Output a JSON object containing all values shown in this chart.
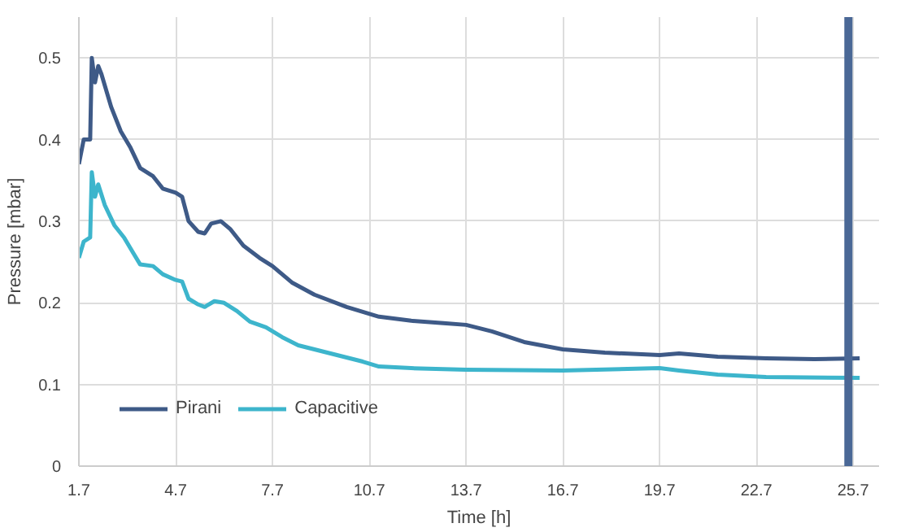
{
  "chart_data": {
    "type": "line",
    "xlabel": "Time [h]",
    "ylabel": "Pressure [mbar]",
    "xlim": [
      1.7,
      26.5
    ],
    "xticks": [
      1.7,
      4.7,
      7.7,
      10.7,
      13.7,
      16.7,
      19.7,
      22.7,
      25.7
    ],
    "ylim": [
      0,
      0.55
    ],
    "yticks": [
      0,
      0.1,
      0.2,
      0.3,
      0.4,
      0.5
    ],
    "grid": true,
    "legend": "bottom left",
    "line_style": "solid",
    "marker": "none",
    "ref_lines": [
      {
        "axis": "x",
        "value": 25.55,
        "label": null,
        "color": "#4a6896"
      }
    ],
    "series": [
      {
        "name": "Pirani",
        "color": "#3e5a87",
        "x": [
          1.7,
          1.85,
          2.05,
          2.1,
          2.2,
          2.3,
          2.4,
          2.7,
          3.0,
          3.3,
          3.6,
          4.0,
          4.3,
          4.7,
          4.9,
          5.1,
          5.4,
          5.6,
          5.8,
          6.1,
          6.4,
          6.8,
          7.3,
          7.7,
          8.3,
          9,
          10,
          11,
          12,
          13,
          13.7,
          14.5,
          15.5,
          16.7,
          18,
          19.7,
          20.3,
          21.5,
          23,
          24.5,
          25.9
        ],
        "values": [
          0.37,
          0.4,
          0.4,
          0.5,
          0.47,
          0.49,
          0.48,
          0.44,
          0.41,
          0.39,
          0.365,
          0.355,
          0.34,
          0.335,
          0.33,
          0.3,
          0.287,
          0.285,
          0.297,
          0.3,
          0.29,
          0.27,
          0.255,
          0.245,
          0.225,
          0.21,
          0.195,
          0.183,
          0.178,
          0.175,
          0.173,
          0.165,
          0.152,
          0.143,
          0.139,
          0.136,
          0.138,
          0.134,
          0.132,
          0.131,
          0.132
        ]
      },
      {
        "name": "Capacitive",
        "color": "#3db5cc",
        "x": [
          1.7,
          1.85,
          2.05,
          2.1,
          2.2,
          2.3,
          2.5,
          2.8,
          3.1,
          3.4,
          3.6,
          4.0,
          4.3,
          4.7,
          4.9,
          5.1,
          5.4,
          5.6,
          5.9,
          6.2,
          6.6,
          7.0,
          7.5,
          8,
          8.5,
          9.5,
          10.5,
          11,
          12,
          13.7,
          16.7,
          19.7,
          20.3,
          21.5,
          23,
          25.9
        ],
        "values": [
          0.255,
          0.275,
          0.28,
          0.36,
          0.33,
          0.345,
          0.32,
          0.295,
          0.28,
          0.26,
          0.247,
          0.245,
          0.235,
          0.228,
          0.226,
          0.205,
          0.198,
          0.195,
          0.202,
          0.2,
          0.19,
          0.177,
          0.17,
          0.158,
          0.148,
          0.138,
          0.128,
          0.122,
          0.12,
          0.118,
          0.117,
          0.12,
          0.117,
          0.112,
          0.109,
          0.108
        ]
      }
    ]
  }
}
